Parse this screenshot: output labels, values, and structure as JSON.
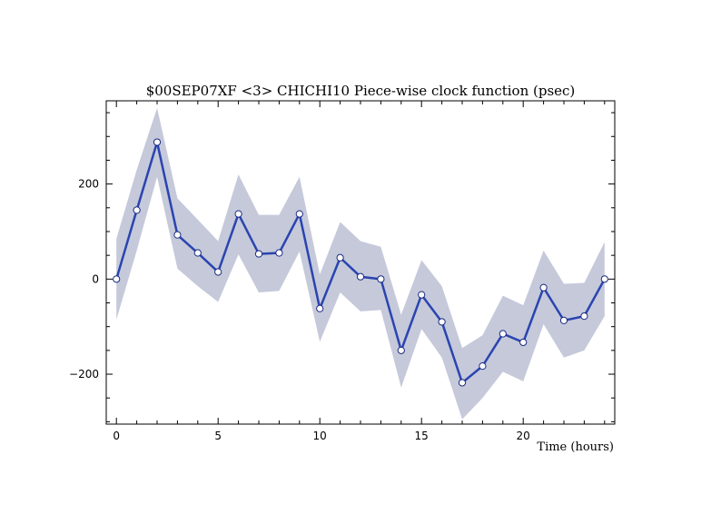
{
  "chart_data": {
    "type": "line",
    "title": "$00SEP07XF <3>  CHICHI10  Piece-wise clock function (psec)",
    "xlabel": "Time (hours)",
    "ylabel": "",
    "xlim": [
      -0.5,
      24.5
    ],
    "ylim": [
      -305,
      375
    ],
    "x_ticks": [
      0,
      5,
      10,
      15,
      20
    ],
    "y_ticks": [
      -200,
      0,
      200
    ],
    "x_minor_step": 1,
    "y_minor_step": 50,
    "grid": false,
    "colors": {
      "line": "#2a44b0",
      "band": "#c5c9da",
      "marker_fill": "#ffffff",
      "marker_stroke": "#1a2a80"
    },
    "series": [
      {
        "x": [
          0,
          1,
          2,
          3,
          4,
          5,
          6,
          7,
          8,
          9,
          10,
          11,
          12,
          13,
          14,
          15,
          16,
          17,
          18,
          19,
          20,
          21,
          22,
          23,
          24
        ],
        "y": [
          0,
          145,
          288,
          93,
          55,
          15,
          137,
          53,
          55,
          137,
          -62,
          45,
          5,
          0,
          -150,
          -33,
          -90,
          -218,
          -183,
          -115,
          -133,
          -18,
          -87,
          -78,
          0
        ],
        "upper": [
          85,
          230,
          360,
          170,
          125,
          80,
          220,
          135,
          135,
          215,
          10,
          120,
          80,
          68,
          -75,
          40,
          -15,
          -145,
          -118,
          -35,
          -55,
          60,
          -10,
          -8,
          78
        ],
        "lower": [
          -85,
          60,
          215,
          22,
          -15,
          -48,
          52,
          -28,
          -25,
          58,
          -132,
          -28,
          -68,
          -65,
          -228,
          -105,
          -165,
          -295,
          -250,
          -195,
          -215,
          -95,
          -165,
          -150,
          -78
        ]
      }
    ]
  }
}
